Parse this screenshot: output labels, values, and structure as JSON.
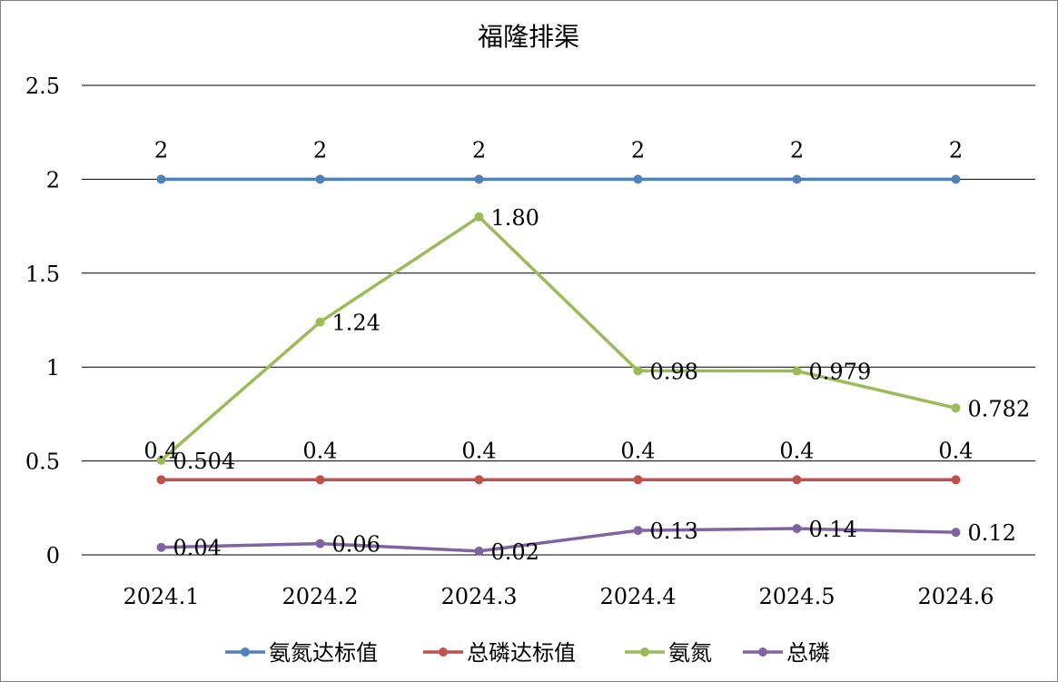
{
  "chart_data": {
    "type": "line",
    "title": "福隆排渠",
    "xlabel": "",
    "ylabel": "",
    "categories": [
      "2024.1",
      "2024.2",
      "2024.3",
      "2024.4",
      "2024.5",
      "2024.6"
    ],
    "y_tick_labels": [
      "0",
      "0.5",
      "1",
      "1.5",
      "2",
      "2.5"
    ],
    "ylim": [
      0,
      2.5
    ],
    "grid": "horizontal",
    "legend_position": "bottom",
    "series": [
      {
        "name": "氨氮达标值",
        "color": "#4F81BD",
        "values": [
          2,
          2,
          2,
          2,
          2,
          2
        ],
        "labels": [
          "2",
          "2",
          "2",
          "2",
          "2",
          "2"
        ],
        "label_position": "above"
      },
      {
        "name": "总磷达标值",
        "color": "#C0504D",
        "values": [
          0.4,
          0.4,
          0.4,
          0.4,
          0.4,
          0.4
        ],
        "labels": [
          "0.4",
          "0.4",
          "0.4",
          "0.4",
          "0.4",
          "0.4"
        ],
        "label_position": "above"
      },
      {
        "name": "氨氮",
        "color": "#9BBB59",
        "values": [
          0.504,
          1.24,
          1.8,
          0.98,
          0.979,
          0.782
        ],
        "labels": [
          "0.504",
          "1.24",
          "1.80",
          "0.98",
          "0.979",
          "0.782"
        ],
        "label_position": "right"
      },
      {
        "name": "总磷",
        "color": "#8064A2",
        "values": [
          0.04,
          0.06,
          0.02,
          0.13,
          0.14,
          0.12
        ],
        "labels": [
          "0.04",
          "0.06",
          "0.02",
          "0.13",
          "0.14",
          "0.12"
        ],
        "label_position": "right"
      }
    ]
  }
}
